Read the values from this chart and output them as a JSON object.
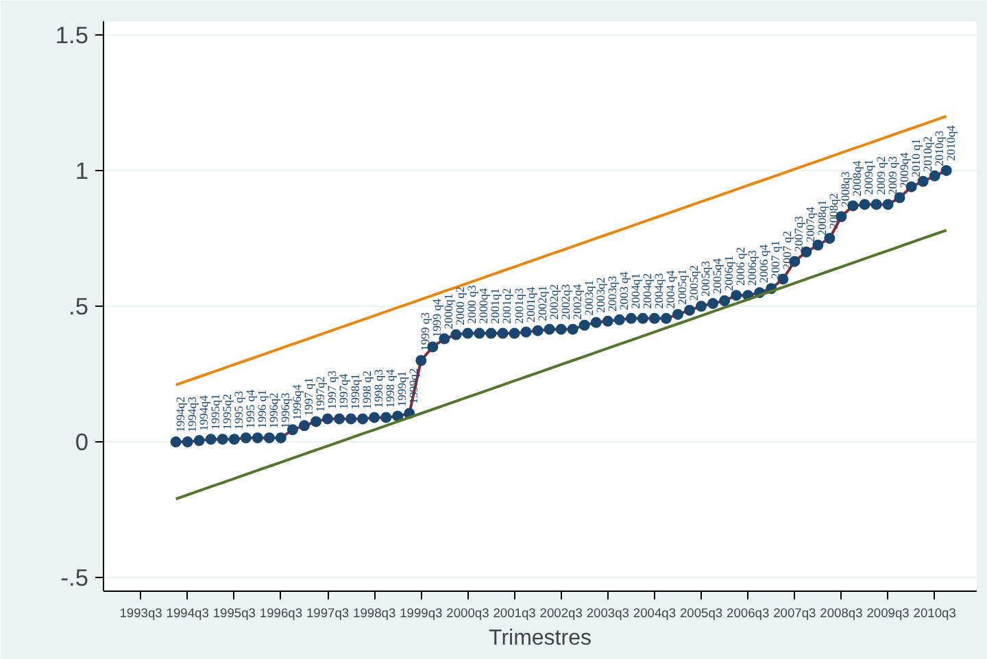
{
  "chart_data": {
    "type": "line",
    "xlabel": "Trimestres",
    "categories": [
      "1993q3",
      null,
      null,
      null,
      "1994q3",
      null,
      null,
      null,
      "1995q3",
      null,
      null,
      null,
      "1996q3",
      null,
      null,
      null,
      "1997q3",
      null,
      null,
      null,
      "1998q3",
      null,
      null,
      null,
      "1999q3",
      null,
      null,
      null,
      "2000q3",
      null,
      null,
      null,
      "2001q3",
      null,
      null,
      null,
      "2002q3",
      null,
      null,
      null,
      "2003q3",
      null,
      null,
      null,
      "2004q3",
      null,
      null,
      null,
      "2005q3",
      null,
      null,
      null,
      "2006q3",
      null,
      null,
      null,
      "2007q3",
      null,
      null,
      null,
      "2008q3",
      null,
      null,
      null,
      "2009q3",
      null,
      null,
      null,
      "2010q3",
      null
    ],
    "series": [
      {
        "color": "#8b2b3a",
        "values": [
          null,
          null,
          null,
          0,
          0,
          0.005,
          0.01,
          0.01,
          0.01,
          0.015,
          0.015,
          0.015,
          0.015,
          0.045,
          0.06,
          0.075,
          0.085,
          0.085,
          0.085,
          0.085,
          0.09,
          0.09,
          0.095,
          0.105,
          0.3,
          0.35,
          0.38,
          0.395,
          0.4,
          0.4,
          0.4,
          0.4,
          0.4,
          0.405,
          0.41,
          0.415,
          0.415,
          0.415,
          0.43,
          0.44,
          0.445,
          0.45,
          0.455,
          0.455,
          0.455,
          0.455,
          0.47,
          0.485,
          0.5,
          0.51,
          0.52,
          0.54,
          0.54,
          0.55,
          0.565,
          0.6,
          0.665,
          0.7,
          0.725,
          0.75,
          0.83,
          0.87,
          0.875,
          0.875,
          0.875,
          0.9,
          0.94,
          0.96,
          0.98,
          1.0
        ]
      },
      {
        "type": "scatter",
        "color": "#1a476f",
        "marker": "circle",
        "values": [
          null,
          null,
          null,
          0,
          0,
          0.005,
          0.01,
          0.01,
          0.01,
          0.015,
          0.015,
          0.015,
          0.015,
          0.045,
          0.06,
          0.075,
          0.085,
          0.085,
          0.085,
          0.085,
          0.09,
          0.09,
          0.095,
          0.105,
          0.3,
          0.35,
          0.38,
          0.395,
          0.4,
          0.4,
          0.4,
          0.4,
          0.4,
          0.405,
          0.41,
          0.415,
          0.415,
          0.415,
          0.43,
          0.44,
          0.445,
          0.45,
          0.455,
          0.455,
          0.455,
          0.455,
          0.47,
          0.485,
          0.5,
          0.51,
          0.52,
          0.54,
          0.54,
          0.55,
          0.565,
          0.6,
          0.665,
          0.7,
          0.725,
          0.75,
          0.83,
          0.87,
          0.875,
          0.875,
          0.875,
          0.9,
          0.94,
          0.96,
          0.98,
          1.0
        ]
      },
      {
        "color": "#e8870e",
        "values": [
          null,
          null,
          null,
          0.21,
          0.225,
          0.24,
          0.255,
          0.27,
          0.285,
          0.3,
          0.315,
          0.33,
          0.345,
          0.36,
          0.375,
          0.39,
          0.405,
          0.42,
          0.435,
          0.45,
          0.465,
          0.48,
          0.495,
          0.51,
          0.525,
          0.54,
          0.555,
          0.57,
          0.585,
          0.6,
          0.615,
          0.63,
          0.645,
          0.66,
          0.675,
          0.69,
          0.705,
          0.72,
          0.735,
          0.75,
          0.765,
          0.78,
          0.795,
          0.81,
          0.825,
          0.84,
          0.855,
          0.87,
          0.885,
          0.9,
          0.915,
          0.93,
          0.945,
          0.96,
          0.975,
          0.99,
          1.005,
          1.02,
          1.035,
          1.05,
          1.065,
          1.08,
          1.095,
          1.11,
          1.125,
          1.14,
          1.155,
          1.17,
          1.185,
          1.2
        ]
      },
      {
        "color": "#55752f",
        "values": [
          null,
          null,
          null,
          -0.21,
          -0.195,
          -0.18,
          -0.165,
          -0.15,
          -0.135,
          -0.12,
          -0.105,
          -0.09,
          -0.075,
          -0.06,
          -0.045,
          -0.03,
          -0.015,
          0,
          0.015,
          0.03,
          0.045,
          0.06,
          0.075,
          0.09,
          0.105,
          0.12,
          0.135,
          0.15,
          0.165,
          0.18,
          0.195,
          0.21,
          0.225,
          0.24,
          0.255,
          0.27,
          0.285,
          0.3,
          0.315,
          0.33,
          0.345,
          0.36,
          0.375,
          0.39,
          0.405,
          0.42,
          0.435,
          0.45,
          0.465,
          0.48,
          0.495,
          0.51,
          0.525,
          0.54,
          0.555,
          0.57,
          0.585,
          0.6,
          0.615,
          0.63,
          0.645,
          0.66,
          0.675,
          0.69,
          0.705,
          0.72,
          0.735,
          0.75,
          0.765,
          0.78
        ]
      }
    ],
    "annotations": [
      {
        "text": "1994q2",
        "y": 0
      },
      {
        "text": "1994q3",
        "y": 0
      },
      {
        "text": "1994q4",
        "y": 0.005
      },
      {
        "text": "1995q1",
        "y": 0.01
      },
      {
        "text": "1995q2",
        "y": 0.01
      },
      {
        "text": "1995 q3",
        "y": 0.01
      },
      {
        "text": "1995 q4",
        "y": 0.015
      },
      {
        "text": "1996 q1",
        "y": 0.015
      },
      {
        "text": "1996q2",
        "y": 0.015
      },
      {
        "text": "1996q3",
        "y": 0.015
      },
      {
        "text": "1996q4",
        "y": 0.045
      },
      {
        "text": "1997 q1",
        "y": 0.06
      },
      {
        "text": "1997q2",
        "y": 0.075
      },
      {
        "text": "1997 q3",
        "y": 0.085
      },
      {
        "text": "1997q4",
        "y": 0.085
      },
      {
        "text": "1998q1",
        "y": 0.085
      },
      {
        "text": "1998 q2",
        "y": 0.085
      },
      {
        "text": "1998 q3",
        "y": 0.09
      },
      {
        "text": "1998 q4",
        "y": 0.09
      },
      {
        "text": "1999q1",
        "y": 0.095
      },
      {
        "text": "1999q2",
        "y": 0.105
      },
      {
        "text": "1999 q3",
        "y": 0.3
      },
      {
        "text": "1999 q4",
        "y": 0.35
      },
      {
        "text": "2000q1",
        "y": 0.38
      },
      {
        "text": "2000 q2",
        "y": 0.395
      },
      {
        "text": "2000 q3",
        "y": 0.4
      },
      {
        "text": "2000q4",
        "y": 0.4
      },
      {
        "text": "2001q1",
        "y": 0.4
      },
      {
        "text": "2001q2",
        "y": 0.4
      },
      {
        "text": "2001q3",
        "y": 0.4
      },
      {
        "text": "2001q4",
        "y": 0.405
      },
      {
        "text": "2002q1",
        "y": 0.41
      },
      {
        "text": "2002q2",
        "y": 0.415
      },
      {
        "text": "2002q3",
        "y": 0.415
      },
      {
        "text": "2002q4",
        "y": 0.415
      },
      {
        "text": "2003q1",
        "y": 0.43
      },
      {
        "text": "2003q2",
        "y": 0.44
      },
      {
        "text": "2003q3",
        "y": 0.445
      },
      {
        "text": "2003 q4",
        "y": 0.45
      },
      {
        "text": "2004q1",
        "y": 0.455
      },
      {
        "text": "2004q2",
        "y": 0.455
      },
      {
        "text": "2004q3",
        "y": 0.455
      },
      {
        "text": "2004 q4",
        "y": 0.455
      },
      {
        "text": "2005q1",
        "y": 0.47
      },
      {
        "text": "2005q2",
        "y": 0.485
      },
      {
        "text": "2005q3",
        "y": 0.5
      },
      {
        "text": "2005q4",
        "y": 0.51
      },
      {
        "text": "2006q1",
        "y": 0.52
      },
      {
        "text": "2006 q2",
        "y": 0.54
      },
      {
        "text": "2006q3",
        "y": 0.54
      },
      {
        "text": "2006 q4",
        "y": 0.55
      },
      {
        "text": "2007 q1",
        "y": 0.565
      },
      {
        "text": "2007 q2",
        "y": 0.6
      },
      {
        "text": "2007q3",
        "y": 0.665
      },
      {
        "text": "2007q4",
        "y": 0.7
      },
      {
        "text": "2008q1",
        "y": 0.725
      },
      {
        "text": "2008q2",
        "y": 0.75
      },
      {
        "text": "2008q3",
        "y": 0.83
      },
      {
        "text": "2008q4",
        "y": 0.87
      },
      {
        "text": "2009q1",
        "y": 0.875
      },
      {
        "text": "2009 q2",
        "y": 0.875
      },
      {
        "text": "2009 q3",
        "y": 0.875
      },
      {
        "text": "2009q4",
        "y": 0.9
      },
      {
        "text": "2010 q1",
        "y": 0.94
      },
      {
        "text": "2010q2",
        "y": 0.96
      },
      {
        "text": "2010q3",
        "y": 0.98
      },
      {
        "text": "2010q4",
        "y": 1.0
      }
    ],
    "ylim": [
      -0.55,
      1.55
    ],
    "yticks": [
      {
        "value": -0.5,
        "label": "-.5"
      },
      0,
      {
        "value": 0.5,
        "label": ".5"
      },
      1,
      {
        "value": 1.5,
        "label": "1.5"
      }
    ],
    "grid": "y"
  }
}
